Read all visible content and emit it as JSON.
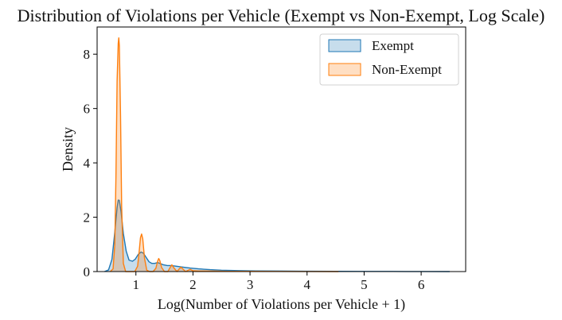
{
  "chart_data": {
    "type": "area",
    "title": "Distribution of Violations per Vehicle (Exempt vs Non-Exempt, Log Scale)",
    "xlabel": "Log(Number of Violations per Vehicle + 1)",
    "ylabel": "Density",
    "xlim": [
      0.32,
      6.78
    ],
    "ylim": [
      0,
      9.0
    ],
    "xticks": [
      1,
      2,
      3,
      4,
      5,
      6
    ],
    "yticks": [
      0,
      2,
      4,
      6,
      8
    ],
    "grid": false,
    "legend": "top-right",
    "series": [
      {
        "name": "Exempt",
        "color": "#1f77b4",
        "fill": "#1f77b4",
        "fill_opacity": 0.25,
        "x": [
          0.45,
          0.52,
          0.58,
          0.63,
          0.67,
          0.69,
          0.71,
          0.74,
          0.78,
          0.83,
          0.88,
          0.94,
          0.99,
          1.04,
          1.09,
          1.13,
          1.18,
          1.23,
          1.28,
          1.33,
          1.38,
          1.42,
          1.48,
          1.55,
          1.62,
          1.7,
          1.8,
          1.95,
          2.1,
          2.3,
          2.5,
          2.8,
          3.1,
          3.5,
          4.0,
          4.5,
          5.0,
          5.5,
          6.0,
          6.5
        ],
        "y": [
          0.0,
          0.06,
          0.45,
          1.45,
          2.35,
          2.63,
          2.62,
          2.2,
          1.4,
          0.75,
          0.42,
          0.38,
          0.46,
          0.63,
          0.72,
          0.68,
          0.52,
          0.36,
          0.3,
          0.3,
          0.33,
          0.3,
          0.25,
          0.22,
          0.22,
          0.2,
          0.17,
          0.13,
          0.1,
          0.07,
          0.05,
          0.035,
          0.025,
          0.018,
          0.012,
          0.008,
          0.006,
          0.004,
          0.002,
          0.0
        ]
      },
      {
        "name": "Non-Exempt",
        "color": "#ff7f0e",
        "fill": "#ff7f0e",
        "fill_opacity": 0.25,
        "x": [
          0.55,
          0.6,
          0.63,
          0.65,
          0.67,
          0.69,
          0.7,
          0.71,
          0.73,
          0.75,
          0.78,
          0.82,
          0.9,
          0.98,
          1.03,
          1.06,
          1.08,
          1.1,
          1.12,
          1.15,
          1.19,
          1.24,
          1.3,
          1.35,
          1.38,
          1.4,
          1.42,
          1.45,
          1.5,
          1.56,
          1.6,
          1.63,
          1.66,
          1.72,
          1.76,
          1.79,
          1.82,
          1.87,
          1.92,
          1.95,
          2.0,
          2.1,
          2.2,
          2.4,
          2.6,
          2.8,
          3.0,
          3.5,
          4.0,
          4.55
        ],
        "y": [
          0.0,
          0.1,
          1.0,
          3.5,
          7.0,
          8.4,
          8.6,
          8.3,
          5.8,
          2.4,
          0.3,
          0.0,
          0.0,
          0.0,
          0.2,
          0.8,
          1.25,
          1.38,
          1.2,
          0.5,
          0.05,
          0.0,
          0.0,
          0.12,
          0.38,
          0.48,
          0.4,
          0.15,
          0.0,
          0.0,
          0.15,
          0.25,
          0.15,
          0.0,
          0.1,
          0.16,
          0.1,
          0.0,
          0.05,
          0.08,
          0.03,
          0.02,
          0.02,
          0.015,
          0.01,
          0.01,
          0.008,
          0.005,
          0.003,
          0.0
        ]
      }
    ]
  }
}
